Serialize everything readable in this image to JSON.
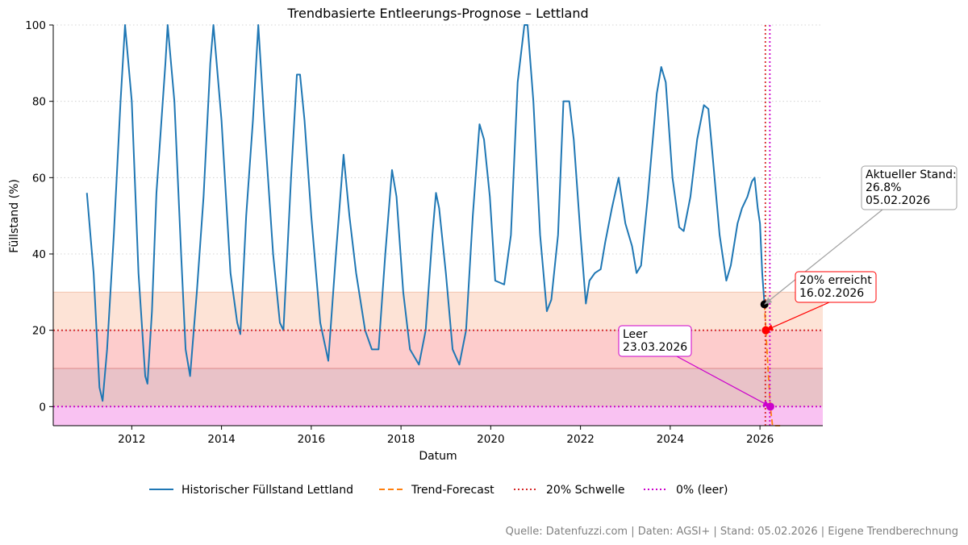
{
  "chart_data": {
    "type": "line",
    "title": "Trendbasierte Entleerungs-Prognose – Lettland",
    "xlabel": "Datum",
    "ylabel": "Füllstand (%)",
    "xlim": [
      2010.25,
      2027.4
    ],
    "ylim": [
      -5,
      100
    ],
    "x_ticks": [
      2012,
      2014,
      2016,
      2018,
      2020,
      2022,
      2024,
      2026
    ],
    "y_ticks": [
      0,
      20,
      40,
      60,
      80,
      100
    ],
    "grid": "horizontal-dotted",
    "bands": [
      {
        "from": 20,
        "to": 30,
        "color": "#fde3d6"
      },
      {
        "from": 10,
        "to": 20,
        "color": "#fdcccc"
      },
      {
        "from": 0,
        "to": 10,
        "color": "#e9c2c8"
      },
      {
        "from": -5,
        "to": 0,
        "color": "#f9c2f2"
      }
    ],
    "series": [
      {
        "name": "Historischer Füllstand Lettland",
        "color": "#1f77b4",
        "style": "solid",
        "points": [
          [
            2011.0,
            56
          ],
          [
            2011.15,
            35
          ],
          [
            2011.28,
            5
          ],
          [
            2011.35,
            1.5
          ],
          [
            2011.45,
            15
          ],
          [
            2011.6,
            45
          ],
          [
            2011.75,
            80
          ],
          [
            2011.85,
            100
          ],
          [
            2012.0,
            80
          ],
          [
            2012.15,
            35
          ],
          [
            2012.3,
            8
          ],
          [
            2012.35,
            6
          ],
          [
            2012.45,
            25
          ],
          [
            2012.55,
            56
          ],
          [
            2012.75,
            90
          ],
          [
            2012.8,
            100
          ],
          [
            2012.95,
            80
          ],
          [
            2013.1,
            40
          ],
          [
            2013.2,
            15
          ],
          [
            2013.3,
            8
          ],
          [
            2013.45,
            30
          ],
          [
            2013.6,
            55
          ],
          [
            2013.75,
            90
          ],
          [
            2013.82,
            100
          ],
          [
            2014.0,
            75
          ],
          [
            2014.2,
            35
          ],
          [
            2014.35,
            22
          ],
          [
            2014.42,
            19
          ],
          [
            2014.55,
            50
          ],
          [
            2014.7,
            75
          ],
          [
            2014.82,
            100
          ],
          [
            2014.95,
            75
          ],
          [
            2015.15,
            40
          ],
          [
            2015.3,
            22
          ],
          [
            2015.38,
            20
          ],
          [
            2015.55,
            60
          ],
          [
            2015.68,
            87
          ],
          [
            2015.75,
            87
          ],
          [
            2015.85,
            75
          ],
          [
            2016.0,
            50
          ],
          [
            2016.2,
            22
          ],
          [
            2016.38,
            12
          ],
          [
            2016.55,
            40
          ],
          [
            2016.72,
            66
          ],
          [
            2016.85,
            50
          ],
          [
            2017.0,
            35
          ],
          [
            2017.2,
            20
          ],
          [
            2017.35,
            15
          ],
          [
            2017.5,
            15
          ],
          [
            2017.65,
            40
          ],
          [
            2017.8,
            62
          ],
          [
            2017.9,
            55
          ],
          [
            2018.05,
            30
          ],
          [
            2018.2,
            15
          ],
          [
            2018.4,
            11
          ],
          [
            2018.55,
            20
          ],
          [
            2018.7,
            45
          ],
          [
            2018.78,
            56
          ],
          [
            2018.85,
            52
          ],
          [
            2019.0,
            35
          ],
          [
            2019.15,
            15
          ],
          [
            2019.3,
            11
          ],
          [
            2019.45,
            20
          ],
          [
            2019.6,
            50
          ],
          [
            2019.75,
            74
          ],
          [
            2019.85,
            70
          ],
          [
            2019.98,
            55
          ],
          [
            2020.1,
            33
          ],
          [
            2020.3,
            32
          ],
          [
            2020.45,
            45
          ],
          [
            2020.6,
            85
          ],
          [
            2020.75,
            100
          ],
          [
            2020.82,
            100
          ],
          [
            2020.95,
            80
          ],
          [
            2021.1,
            45
          ],
          [
            2021.25,
            25
          ],
          [
            2021.35,
            28
          ],
          [
            2021.5,
            45
          ],
          [
            2021.62,
            80
          ],
          [
            2021.75,
            80
          ],
          [
            2021.85,
            70
          ],
          [
            2022.0,
            45
          ],
          [
            2022.12,
            27
          ],
          [
            2022.2,
            33
          ],
          [
            2022.32,
            35
          ],
          [
            2022.45,
            36
          ],
          [
            2022.55,
            43
          ],
          [
            2022.7,
            52
          ],
          [
            2022.85,
            60
          ],
          [
            2023.0,
            48
          ],
          [
            2023.15,
            42
          ],
          [
            2023.25,
            35
          ],
          [
            2023.35,
            37
          ],
          [
            2023.5,
            55
          ],
          [
            2023.7,
            82
          ],
          [
            2023.8,
            89
          ],
          [
            2023.9,
            85
          ],
          [
            2024.05,
            60
          ],
          [
            2024.2,
            47
          ],
          [
            2024.3,
            46
          ],
          [
            2024.45,
            55
          ],
          [
            2024.6,
            70
          ],
          [
            2024.75,
            79
          ],
          [
            2024.85,
            78
          ],
          [
            2024.95,
            65
          ],
          [
            2025.1,
            45
          ],
          [
            2025.25,
            33
          ],
          [
            2025.35,
            37
          ],
          [
            2025.5,
            48
          ],
          [
            2025.6,
            52
          ],
          [
            2025.72,
            55
          ],
          [
            2025.82,
            59
          ],
          [
            2025.88,
            60
          ],
          [
            2025.95,
            52
          ],
          [
            2026.0,
            48
          ],
          [
            2026.05,
            35
          ],
          [
            2026.1,
            26.8
          ]
        ]
      },
      {
        "name": "Trend-Forecast",
        "color": "#ff7f0e",
        "style": "dashed",
        "points": [
          [
            2026.1,
            26.8
          ],
          [
            2026.13,
            20
          ],
          [
            2026.23,
            0
          ],
          [
            2026.28,
            -5
          ],
          [
            2026.45,
            -5
          ]
        ]
      },
      {
        "name": "20% Schwelle",
        "color": "#d62728",
        "style": "dotted",
        "points": [
          [
            2010.25,
            20
          ],
          [
            2027.4,
            20
          ]
        ],
        "vertical_at": 2026.12
      },
      {
        "name": "0% (leer)",
        "color": "#cc00cc",
        "style": "dotted",
        "points": [
          [
            2010.25,
            0
          ],
          [
            2027.4,
            0
          ]
        ],
        "vertical_at": 2026.22
      }
    ],
    "markers": [
      {
        "x": 2026.1,
        "y": 26.8,
        "color": "#000000"
      },
      {
        "x": 2026.13,
        "y": 20,
        "color": "#ff0000"
      },
      {
        "x": 2026.23,
        "y": 0,
        "color": "#cc00cc"
      }
    ],
    "annotations": [
      {
        "id": "current",
        "lines": [
          "Aktueller Stand:",
          "26.8%",
          "05.02.2026"
        ],
        "border": "#a0a0a0",
        "arrow": "#a0a0a0"
      },
      {
        "id": "threshold",
        "lines": [
          "20% erreicht",
          "16.02.2026"
        ],
        "border": "#ff0000",
        "arrow": "#ff0000"
      },
      {
        "id": "empty",
        "lines": [
          "Leer",
          "23.03.2026"
        ],
        "border": "#cc00cc",
        "arrow": "#cc00cc"
      }
    ],
    "legend_position": "bottom-center"
  },
  "footer": "Quelle: Datenfuzzi.com | Daten: AGSI+ | Stand: 05.02.2026 | Eigene Trendberechnung"
}
